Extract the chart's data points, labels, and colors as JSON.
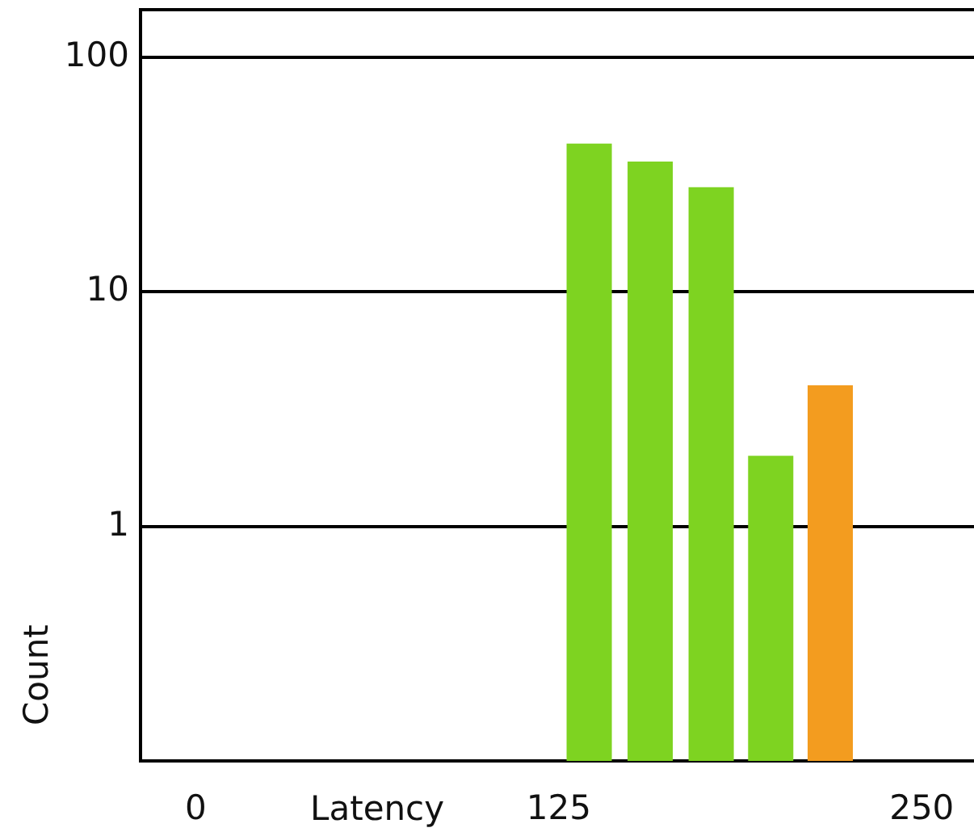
{
  "chart_data": {
    "type": "histogram",
    "xlabel": "Latency",
    "ylabel": "Count",
    "bins": [
      125,
      146,
      167,
      188,
      208,
      229
    ],
    "values": [
      43,
      36,
      28,
      2,
      4
    ],
    "colors": [
      "#7ed321",
      "#7ed321",
      "#7ed321",
      "#7ed321",
      "#f39c1f"
    ],
    "xlim": [
      -19,
      268
    ],
    "xticks": [
      0,
      125,
      250
    ],
    "ylim": [
      0.1,
      160
    ],
    "yticks": [
      1,
      10,
      100
    ],
    "log": true,
    "grid": "y"
  }
}
